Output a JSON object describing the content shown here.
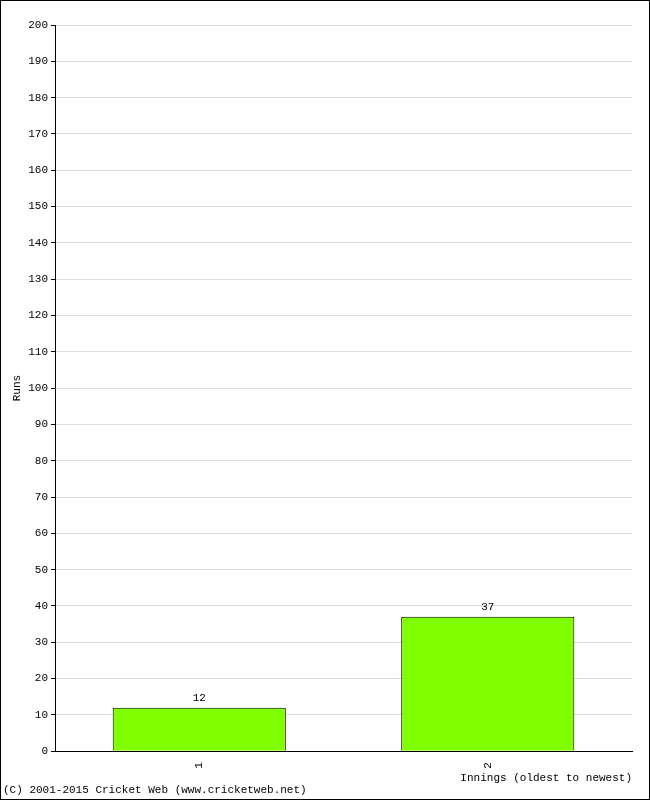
{
  "chart_data": {
    "type": "bar",
    "categories": [
      "1",
      "2"
    ],
    "values": [
      12,
      37
    ],
    "color": "#80ff00",
    "x_label": "Innings (oldest to newest)",
    "y_label": "Runs",
    "annotations": [
      "(C) 2001-2015 Cricket Web (www.cricketweb.net)"
    ],
    "ylim": [
      0,
      200
    ],
    "yticks": [
      0,
      10,
      20,
      30,
      40,
      50,
      60,
      70,
      80,
      90,
      100,
      110,
      120,
      130,
      140,
      150,
      160,
      170,
      180,
      190,
      200
    ],
    "grid": true,
    "data_labels": true
  }
}
